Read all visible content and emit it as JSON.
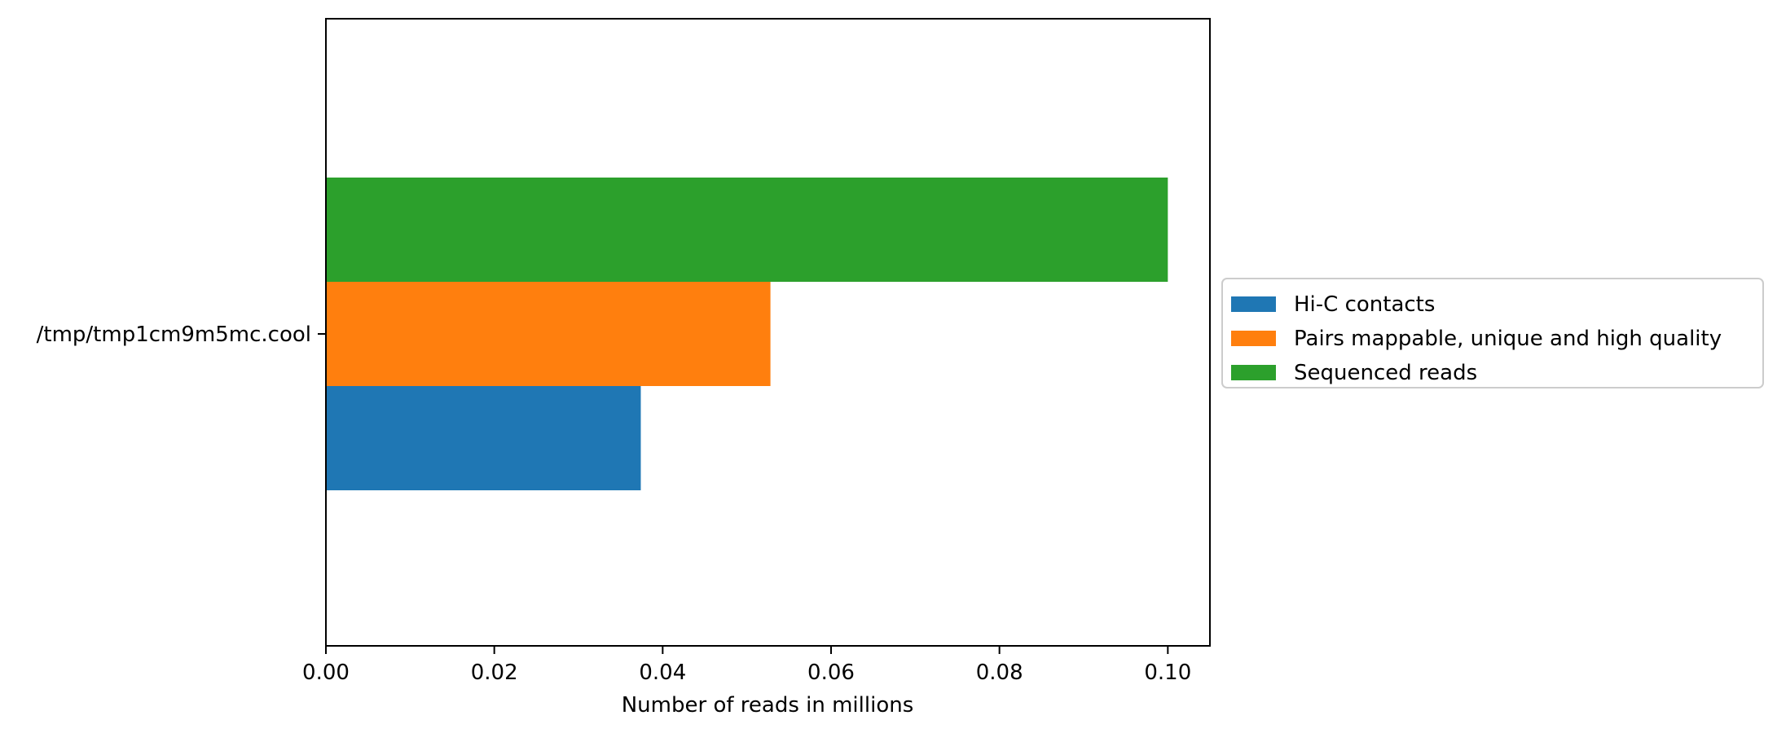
{
  "chart_data": {
    "type": "bar",
    "orientation": "horizontal",
    "categories": [
      "/tmp/tmp1cm9m5mc.cool"
    ],
    "series": [
      {
        "name": "Hi-C contacts",
        "values": [
          0.0374
        ],
        "color": "#1f77b4"
      },
      {
        "name": "Pairs mappable, unique and high quality",
        "values": [
          0.0528
        ],
        "color": "#ff7f0e"
      },
      {
        "name": "Sequenced reads",
        "values": [
          0.1
        ],
        "color": "#2ca02c"
      }
    ],
    "xlabel": "Number of reads in millions",
    "ylabel": "",
    "xlim": [
      0,
      0.105
    ],
    "xticks": [
      "0.00",
      "0.02",
      "0.04",
      "0.06",
      "0.08",
      "0.10"
    ],
    "grid": false,
    "legend_position": "center-right outside"
  }
}
